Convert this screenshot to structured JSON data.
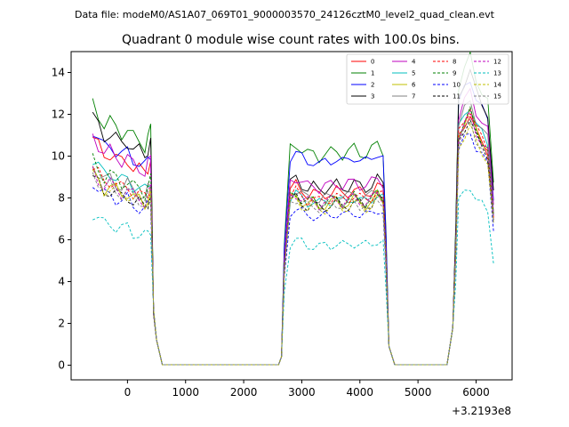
{
  "chart_data": {
    "type": "line",
    "suptitle": "Data file: modeM0/AS1A07_069T01_9000003570_24126cztM0_level2_quad_clean.evt",
    "title": "Quadrant 0 module wise count rates with 100.0s bins.",
    "xlabel": "",
    "ylabel": "",
    "x_offset_label": "+3.2193e8",
    "xlim": [
      -970,
      6620
    ],
    "ylim": [
      -0.7,
      15.0
    ],
    "xticks": [
      0,
      1000,
      2000,
      3000,
      4000,
      5000,
      6000
    ],
    "yticks": [
      0,
      2,
      4,
      6,
      8,
      10,
      12,
      14
    ],
    "legend_position": "upper-right",
    "x": [
      -600,
      -500,
      -400,
      -300,
      -200,
      -100,
      0,
      100,
      200,
      300,
      350,
      400,
      450,
      500,
      600,
      700,
      800,
      900,
      1000,
      1100,
      1200,
      1300,
      1400,
      1500,
      1600,
      1700,
      1800,
      1900,
      2000,
      2100,
      2200,
      2300,
      2400,
      2500,
      2600,
      2650,
      2700,
      2800,
      2900,
      3000,
      3100,
      3200,
      3300,
      3400,
      3500,
      3600,
      3700,
      3800,
      3900,
      4000,
      4100,
      4200,
      4300,
      4400,
      4450,
      4500,
      4600,
      4700,
      4800,
      4900,
      5000,
      5100,
      5200,
      5300,
      5400,
      5500,
      5600,
      5650,
      5700,
      5800,
      5900,
      6000,
      6100,
      6200,
      6300
    ],
    "segments": [
      {
        "profile": [
          1.0,
          0.96,
          0.92,
          0.93,
          0.91,
          0.89,
          0.9,
          0.87,
          0.86,
          0.84,
          0.86,
          0.88
        ],
        "low_end": 1.3,
        "low_start": 1.4
      },
      {
        "profile": [
          0.98,
          1.0,
          0.97,
          0.95,
          0.96,
          0.94,
          0.95,
          0.96,
          0.97,
          0.95,
          0.96,
          0.98,
          0.96,
          0.95,
          0.97,
          1.0
        ],
        "ramp": 0.28,
        "low_end": 1.0
      },
      {
        "profile": [
          1.0,
          1.06,
          1.1,
          1.02,
          0.98,
          0.94,
          0.92,
          0.9,
          0.86,
          0.82,
          0.8
        ],
        "ramp_start": 1.1
      }
    ],
    "series": [
      {
        "name": "0",
        "color": "#ff0000",
        "dash": false,
        "base": [
          10.9,
          8.6,
          10.9
        ]
      },
      {
        "name": "1",
        "color": "#008000",
        "dash": false,
        "base": [
          12.5,
          10.6,
          13.4
        ]
      },
      {
        "name": "2",
        "color": "#0000ff",
        "dash": false,
        "base": [
          11.3,
          10.2,
          12.5
        ]
      },
      {
        "name": "3",
        "color": "#000000",
        "dash": false,
        "base": [
          11.9,
          8.9,
          12.8
        ]
      },
      {
        "name": "4",
        "color": "#bf00bf",
        "dash": false,
        "base": [
          11.0,
          9.0,
          11.9
        ]
      },
      {
        "name": "5",
        "color": "#00bfbf",
        "dash": false,
        "base": [
          9.9,
          8.2,
          11.3
        ]
      },
      {
        "name": "6",
        "color": "#bfbf00",
        "dash": false,
        "base": [
          9.2,
          8.1,
          11.0
        ]
      },
      {
        "name": "7",
        "color": "#808080",
        "dash": false,
        "base": [
          9.6,
          8.4,
          11.5
        ]
      },
      {
        "name": "8",
        "color": "#ff0000",
        "dash": true,
        "base": [
          9.5,
          8.3,
          11.1
        ]
      },
      {
        "name": "9",
        "color": "#008000",
        "dash": true,
        "base": [
          9.8,
          8.2,
          11.0
        ]
      },
      {
        "name": "10",
        "color": "#0000ff",
        "dash": true,
        "base": [
          8.8,
          7.5,
          10.2
        ]
      },
      {
        "name": "11",
        "color": "#000000",
        "dash": true,
        "base": [
          9.0,
          8.0,
          10.7
        ]
      },
      {
        "name": "12",
        "color": "#bf00bf",
        "dash": true,
        "base": [
          9.3,
          8.2,
          10.9
        ]
      },
      {
        "name": "13",
        "color": "#00bfbf",
        "dash": true,
        "base": [
          7.3,
          6.0,
          7.8
        ]
      },
      {
        "name": "14",
        "color": "#bfbf00",
        "dash": true,
        "base": [
          9.1,
          7.9,
          10.4
        ]
      },
      {
        "name": "15",
        "color": "#808080",
        "dash": true,
        "base": [
          9.2,
          8.0,
          10.6
        ]
      }
    ]
  }
}
